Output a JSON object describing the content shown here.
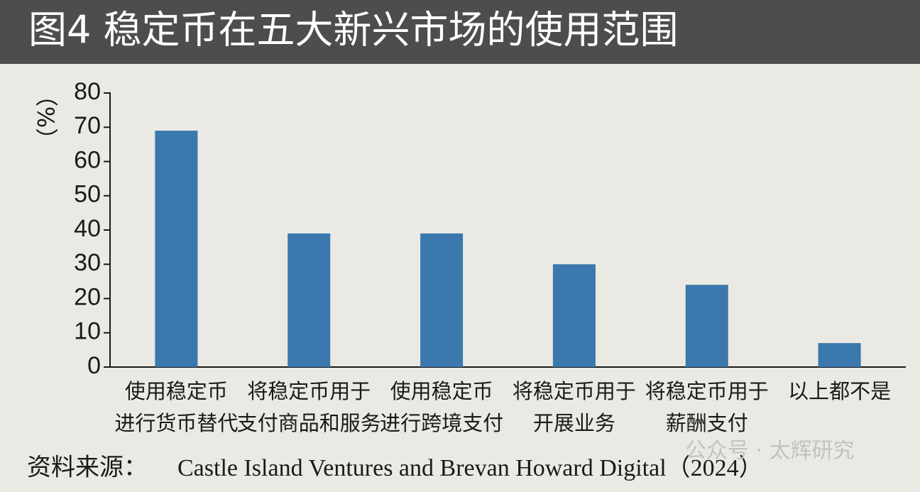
{
  "header": {
    "title": "图4 稳定币在五大新兴市场的使用范围"
  },
  "chart_data": {
    "type": "bar",
    "ylabel": "（%）",
    "categories": [
      [
        "使用稳定币",
        "进行货币替代"
      ],
      [
        "将稳定币用于",
        "支付商品和服务"
      ],
      [
        "使用稳定币",
        "进行跨境支付"
      ],
      [
        "将稳定币用于",
        "开展业务"
      ],
      [
        "将稳定币用于",
        "薪酬支付"
      ],
      [
        "以上都不是"
      ]
    ],
    "values": [
      69,
      39,
      39,
      30,
      24,
      7
    ],
    "color": "#3a78ad",
    "ylim": [
      0,
      80
    ],
    "yticks": [
      0,
      10,
      20,
      30,
      40,
      50,
      60,
      70,
      80
    ],
    "grid": false
  },
  "source": {
    "label": "资料来源：",
    "text": "Castle Island Ventures and Brevan Howard Digital（2024）"
  },
  "watermark": "公众号 · 太辉研究"
}
